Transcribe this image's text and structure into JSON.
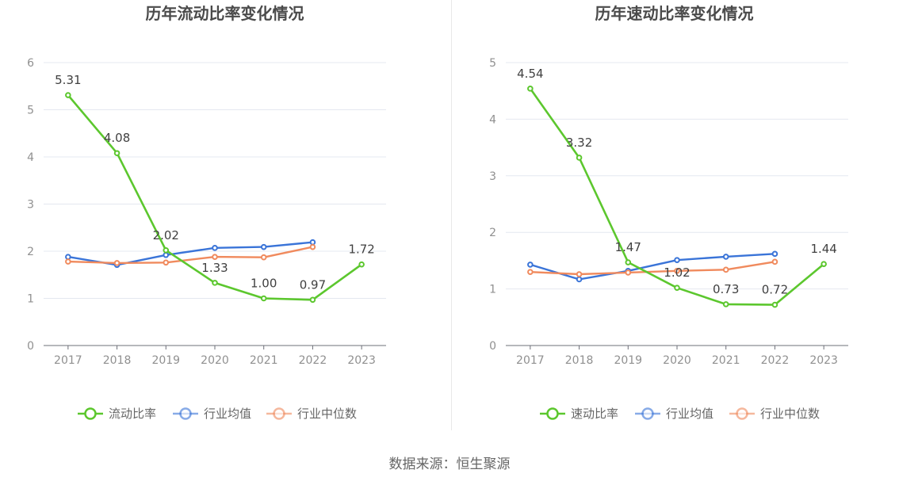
{
  "source_text": "数据来源：恒生聚源",
  "chart_data": [
    {
      "type": "line",
      "title": "历年流动比率变化情况",
      "x": [
        "2017",
        "2018",
        "2019",
        "2020",
        "2021",
        "2022",
        "2023"
      ],
      "ylim": [
        0,
        6
      ],
      "yticks": [
        0,
        1,
        2,
        3,
        4,
        5,
        6
      ],
      "grid": true,
      "legend": "bottom",
      "series": [
        {
          "name": "流动比率",
          "color": "#5cc72e",
          "labeled": true,
          "values": [
            5.31,
            4.08,
            2.02,
            1.33,
            1.0,
            0.97,
            1.72
          ],
          "labels": [
            "5.31",
            "4.08",
            "2.02",
            "1.33",
            "1.00",
            "0.97",
            "1.72"
          ]
        },
        {
          "name": "行业均值",
          "color": "#3a74d8",
          "labeled": false,
          "values": [
            1.88,
            1.71,
            1.92,
            2.07,
            2.09,
            2.19,
            null
          ]
        },
        {
          "name": "行业中位数",
          "color": "#f08a5d",
          "labeled": false,
          "values": [
            1.78,
            1.75,
            1.76,
            1.88,
            1.87,
            2.09,
            null
          ]
        }
      ]
    },
    {
      "type": "line",
      "title": "历年速动比率变化情况",
      "x": [
        "2017",
        "2018",
        "2019",
        "2020",
        "2021",
        "2022",
        "2023"
      ],
      "ylim": [
        0,
        5
      ],
      "yticks": [
        0,
        1,
        2,
        3,
        4,
        5
      ],
      "grid": true,
      "legend": "bottom",
      "series": [
        {
          "name": "速动比率",
          "color": "#5cc72e",
          "labeled": true,
          "values": [
            4.54,
            3.32,
            1.47,
            1.02,
            0.73,
            0.72,
            1.44
          ],
          "labels": [
            "4.54",
            "3.32",
            "1.47",
            "1.02",
            "0.73",
            "0.72",
            "1.44"
          ]
        },
        {
          "name": "行业均值",
          "color": "#3a74d8",
          "labeled": false,
          "values": [
            1.43,
            1.17,
            1.32,
            1.51,
            1.57,
            1.62,
            null
          ]
        },
        {
          "name": "行业中位数",
          "color": "#f08a5d",
          "labeled": false,
          "values": [
            1.3,
            1.26,
            1.29,
            1.32,
            1.34,
            1.48,
            null
          ]
        }
      ]
    }
  ]
}
